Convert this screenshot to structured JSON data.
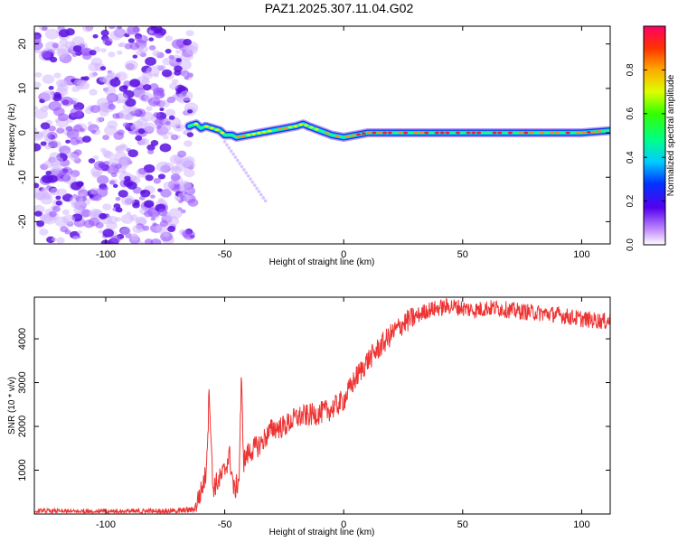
{
  "page": {
    "title": "PAZ1.2025.307.11.04.G02"
  },
  "colors": {
    "axis": "#000000",
    "snr_line": "#ee3333",
    "scatter_base": "#8a2be2"
  },
  "chart_data": [
    {
      "id": "spectrogram",
      "type": "heatmap",
      "title": "PAZ1.2025.307.11.04.G02",
      "xlabel": "Height of straight line (km)",
      "ylabel": "Frequency (Hz)",
      "xlim": [
        -130,
        112
      ],
      "ylim": [
        -25,
        24
      ],
      "x_ticks": [
        -100,
        -50,
        0,
        50,
        100
      ],
      "x_tick_labels": [
        "-100",
        "-50",
        "0",
        "50",
        "100"
      ],
      "y_ticks": [
        -20,
        -10,
        0,
        10,
        20
      ],
      "y_tick_labels": [
        "-20",
        "-10",
        "0",
        "10",
        "20"
      ],
      "ridge": {
        "x": [
          -65,
          -62,
          -60,
          -58,
          -55,
          -52,
          -50,
          -47,
          -45,
          -40,
          -35,
          -30,
          -25,
          -20,
          -17,
          -15,
          -10,
          -5,
          0,
          10,
          20,
          30,
          40,
          50,
          60,
          70,
          80,
          90,
          100,
          112
        ],
        "y": [
          1.5,
          2,
          1,
          1.5,
          1,
          0.5,
          -0.5,
          -0.5,
          -1,
          -0.5,
          0,
          0.5,
          1,
          1.5,
          2,
          1.5,
          0.5,
          -0.5,
          -1,
          0,
          0,
          0,
          0,
          0,
          0,
          0,
          0,
          0,
          0,
          0.5
        ],
        "peak_amplitude": 1.0
      },
      "noise_region_xlim": [
        -130,
        -63
      ],
      "colorbar": {
        "label": "Normalized spectral amplitude",
        "range": [
          0,
          1
        ],
        "ticks": [
          0.0,
          0.2,
          0.4,
          0.6,
          0.8
        ],
        "tick_labels": [
          "0.0",
          "0.2",
          "0.4",
          "0.6",
          "0.8"
        ]
      }
    },
    {
      "id": "snr",
      "type": "line",
      "xlabel": "Height of straight line (km)",
      "ylabel": "SNR (10 * v/v)",
      "xlim": [
        -130,
        112
      ],
      "ylim": [
        0,
        4950
      ],
      "x_ticks": [
        -100,
        -50,
        0,
        50,
        100
      ],
      "x_tick_labels": [
        "-100",
        "-50",
        "0",
        "50",
        "100"
      ],
      "y_ticks": [
        1000,
        2000,
        3000,
        4000
      ],
      "y_tick_labels": [
        "1000",
        "2000",
        "3000",
        "4000"
      ],
      "series": [
        {
          "name": "SNR",
          "x": [
            -130,
            -100,
            -70,
            -63,
            -60,
            -58,
            -57,
            -56.5,
            -55,
            -52,
            -50,
            -48,
            -46,
            -44,
            -43,
            -42,
            -40,
            -35,
            -30,
            -25,
            -20,
            -15,
            -10,
            -5,
            0,
            5,
            10,
            15,
            20,
            25,
            30,
            35,
            40,
            45,
            50,
            55,
            60,
            65,
            70,
            80,
            90,
            100,
            110,
            112
          ],
          "y": [
            50,
            50,
            60,
            100,
            500,
            900,
            2000,
            2900,
            600,
            800,
            1000,
            1350,
            500,
            800,
            3050,
            1200,
            1400,
            1600,
            1950,
            2000,
            2200,
            2250,
            2300,
            2400,
            2600,
            3100,
            3500,
            3800,
            4100,
            4350,
            4500,
            4650,
            4700,
            4750,
            4700,
            4650,
            4700,
            4700,
            4650,
            4600,
            4550,
            4450,
            4400,
            4420
          ],
          "noise_amplitude": 120
        }
      ]
    }
  ]
}
